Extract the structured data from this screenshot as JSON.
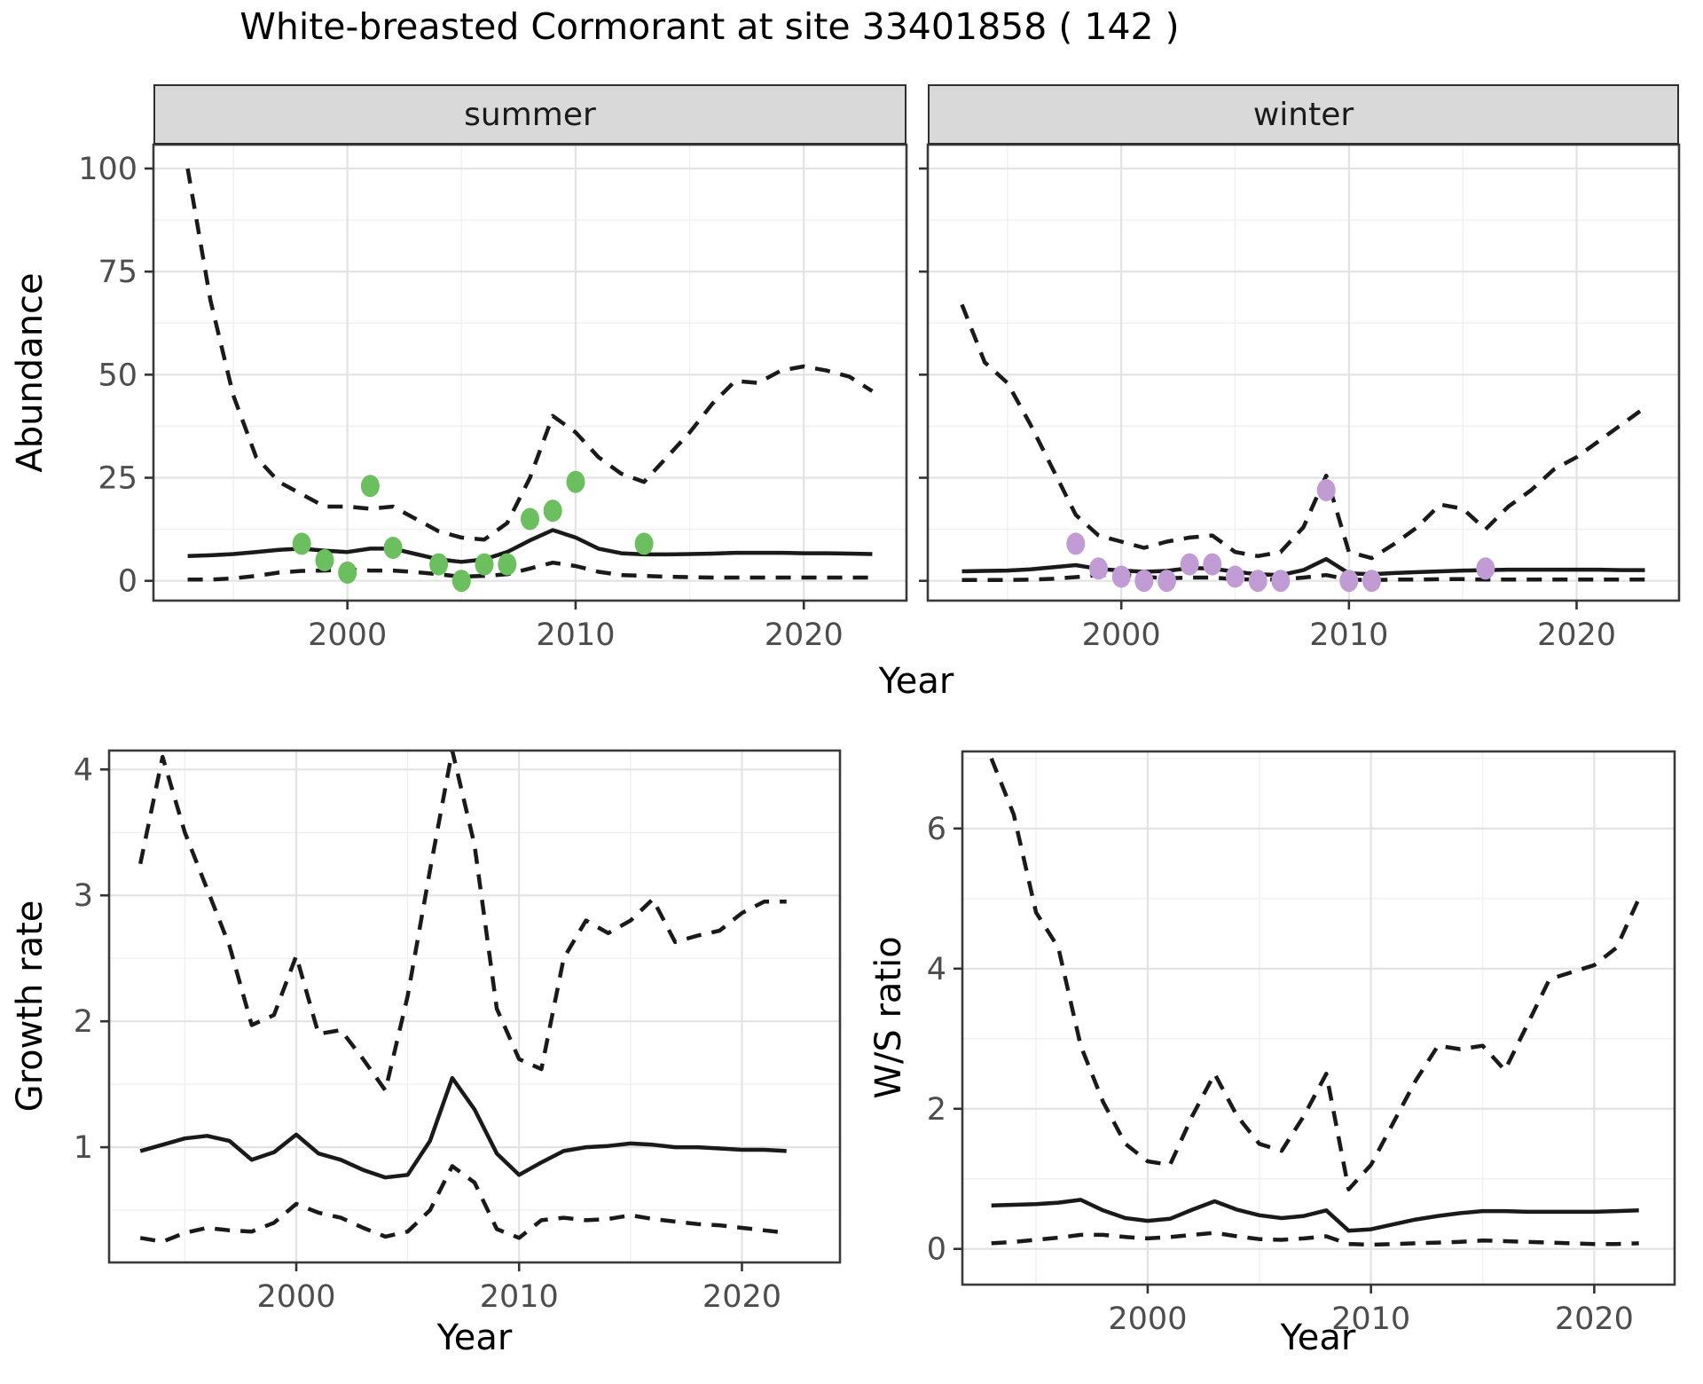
{
  "title": "White-breasted Cormorant at site 33401858 ( 142 )",
  "labels": {
    "y_top": "Abundance",
    "y_bottom_left": "Growth rate",
    "y_bottom_right": "W/S ratio",
    "x": "Year"
  },
  "facets": {
    "summer": "summer",
    "winter": "winter"
  },
  "colors": {
    "summer_points": "#6cbf5e",
    "winter_points": "#c19cd4",
    "line": "#1a1a1a",
    "tick_text": "#4d4d4d",
    "strip_bg": "#d9d9d9",
    "panel_border": "#3a3a3a",
    "grid_major": "#e3e3e3",
    "grid_minor": "#f0f0f0"
  },
  "chart_data": [
    {
      "id": "abundance-summer",
      "type": "line",
      "facet_label": "summer",
      "xlabel": "Year",
      "ylabel": "Abundance",
      "xlim": [
        1991.5,
        2024.5
      ],
      "ylim": [
        -4.8,
        105.8
      ],
      "xticks": [
        2000,
        2010,
        2020
      ],
      "yticks": [
        0,
        25,
        50,
        75,
        100
      ],
      "show_ytick_labels": true,
      "x": [
        1993,
        1994,
        1995,
        1996,
        1997,
        1998,
        1999,
        2000,
        2001,
        2002,
        2003,
        2004,
        2005,
        2006,
        2007,
        2008,
        2009,
        2010,
        2011,
        2012,
        2013,
        2014,
        2015,
        2016,
        2017,
        2018,
        2019,
        2020,
        2021,
        2022,
        2023
      ],
      "series": [
        {
          "name": "upper_95ci",
          "style": "dashed",
          "values": [
            100,
            68,
            45,
            30,
            24,
            21,
            18,
            18,
            17.5,
            18,
            15,
            12,
            10.5,
            10,
            14,
            25,
            40,
            36,
            30,
            26,
            24,
            30,
            36,
            43,
            48.5,
            48,
            51,
            52,
            51,
            49.5,
            46
          ]
        },
        {
          "name": "median",
          "style": "solid",
          "values": [
            6,
            6.2,
            6.5,
            7,
            7.5,
            7.8,
            7.3,
            7,
            7.8,
            7.8,
            6.5,
            5.2,
            4.6,
            5.2,
            7,
            9.8,
            12.3,
            10.5,
            7.8,
            6.7,
            6.4,
            6.4,
            6.5,
            6.6,
            6.8,
            6.8,
            6.8,
            6.7,
            6.7,
            6.6,
            6.5
          ]
        },
        {
          "name": "lower_95ci",
          "style": "dashed",
          "values": [
            0.3,
            0.3,
            0.6,
            1.2,
            2,
            2.4,
            2.5,
            2.8,
            2.5,
            2.5,
            2.1,
            1.6,
            1,
            1.2,
            1.6,
            3,
            4.4,
            3.6,
            2.2,
            1.4,
            1.2,
            1,
            0.9,
            0.8,
            0.8,
            0.8,
            0.8,
            0.8,
            0.8,
            0.8,
            0.8
          ]
        }
      ],
      "points": {
        "name": "observed-summer-counts",
        "color": "#6cbf5e",
        "data": [
          [
            1998,
            9
          ],
          [
            1999,
            5
          ],
          [
            2000,
            2
          ],
          [
            2001,
            23
          ],
          [
            2002,
            8
          ],
          [
            2004,
            4
          ],
          [
            2005,
            0
          ],
          [
            2006,
            4
          ],
          [
            2007,
            4
          ],
          [
            2008,
            15
          ],
          [
            2009,
            17
          ],
          [
            2010,
            24
          ],
          [
            2013,
            9
          ]
        ]
      }
    },
    {
      "id": "abundance-winter",
      "type": "line",
      "facet_label": "winter",
      "xlabel": "Year",
      "ylabel": "Abundance",
      "xlim": [
        1991.5,
        2024.5
      ],
      "ylim": [
        -4.8,
        105.8
      ],
      "xticks": [
        2000,
        2010,
        2020
      ],
      "yticks": [
        0,
        25,
        50,
        75,
        100
      ],
      "show_ytick_labels": false,
      "x": [
        1993,
        1994,
        1995,
        1996,
        1997,
        1998,
        1999,
        2000,
        2001,
        2002,
        2003,
        2004,
        2005,
        2006,
        2007,
        2008,
        2009,
        2010,
        2011,
        2012,
        2013,
        2014,
        2015,
        2016,
        2017,
        2018,
        2019,
        2020,
        2021,
        2022,
        2023
      ],
      "series": [
        {
          "name": "upper_95ci",
          "style": "dashed",
          "values": [
            67,
            53,
            48,
            38,
            27,
            16,
            11,
            9.5,
            8,
            9.5,
            10.5,
            11,
            7,
            6,
            7,
            13,
            25.5,
            7,
            5.5,
            9,
            13,
            18.5,
            17.5,
            12.5,
            18,
            22,
            27,
            30,
            34,
            38,
            42
          ]
        },
        {
          "name": "median",
          "style": "solid",
          "values": [
            2.3,
            2.4,
            2.5,
            2.8,
            3.3,
            3.8,
            2.9,
            2.5,
            2.2,
            2.4,
            3.1,
            3,
            2.2,
            1.6,
            1.4,
            2.6,
            5.3,
            1.8,
            1.6,
            1.9,
            2.1,
            2.3,
            2.5,
            2.6,
            2.7,
            2.7,
            2.7,
            2.7,
            2.7,
            2.6,
            2.6
          ]
        },
        {
          "name": "lower_95ci",
          "style": "dashed",
          "values": [
            0.2,
            0.2,
            0.2,
            0.3,
            0.5,
            0.9,
            1.4,
            1.5,
            1,
            0.6,
            0.8,
            0.8,
            0.4,
            0.3,
            0.3,
            0.8,
            1.4,
            0.3,
            0.2,
            0.3,
            0.3,
            0.4,
            0.4,
            0.3,
            0.3,
            0.3,
            0.3,
            0.3,
            0.3,
            0.3,
            0.3
          ]
        }
      ],
      "points": {
        "name": "observed-winter-counts",
        "color": "#c19cd4",
        "data": [
          [
            1998,
            9
          ],
          [
            1999,
            3
          ],
          [
            2000,
            1
          ],
          [
            2001,
            0
          ],
          [
            2002,
            0
          ],
          [
            2003,
            4
          ],
          [
            2004,
            4
          ],
          [
            2005,
            1
          ],
          [
            2006,
            0
          ],
          [
            2007,
            0
          ],
          [
            2009,
            22
          ],
          [
            2010,
            0
          ],
          [
            2011,
            0
          ],
          [
            2016,
            3
          ]
        ]
      }
    },
    {
      "id": "growth-rate",
      "type": "line",
      "facet_label": "",
      "xlabel": "Year",
      "ylabel": "Growth rate",
      "xlim": [
        1991.6,
        2024.4
      ],
      "ylim": [
        0.085,
        4.15
      ],
      "xticks": [
        2000,
        2010,
        2020
      ],
      "yticks": [
        1,
        2,
        3,
        4
      ],
      "show_ytick_labels": true,
      "x": [
        1993,
        1994,
        1995,
        1996,
        1997,
        1998,
        1999,
        2000,
        2001,
        2002,
        2003,
        2004,
        2005,
        2006,
        2007,
        2008,
        2009,
        2010,
        2011,
        2012,
        2013,
        2014,
        2015,
        2016,
        2017,
        2018,
        2019,
        2020,
        2021,
        2022
      ],
      "series": [
        {
          "name": "upper_95ci",
          "style": "dashed",
          "values": [
            3.25,
            4.1,
            3.5,
            3.05,
            2.6,
            1.97,
            2.05,
            2.52,
            1.9,
            1.93,
            1.7,
            1.45,
            2.2,
            3.2,
            4.15,
            3.4,
            2.1,
            1.7,
            1.62,
            2.5,
            2.8,
            2.7,
            2.8,
            2.97,
            2.63,
            2.68,
            2.72,
            2.86,
            2.95,
            2.95
          ]
        },
        {
          "name": "median",
          "style": "solid",
          "values": [
            0.97,
            1.02,
            1.07,
            1.09,
            1.05,
            0.9,
            0.96,
            1.1,
            0.95,
            0.9,
            0.82,
            0.76,
            0.78,
            1.05,
            1.55,
            1.3,
            0.95,
            0.78,
            0.88,
            0.97,
            1,
            1.01,
            1.03,
            1.02,
            1,
            1,
            0.99,
            0.98,
            0.98,
            0.97
          ]
        },
        {
          "name": "lower_95ci",
          "style": "dashed",
          "values": [
            0.28,
            0.25,
            0.32,
            0.36,
            0.34,
            0.33,
            0.4,
            0.55,
            0.48,
            0.44,
            0.36,
            0.29,
            0.33,
            0.5,
            0.85,
            0.72,
            0.35,
            0.28,
            0.42,
            0.44,
            0.42,
            0.43,
            0.46,
            0.43,
            0.41,
            0.39,
            0.38,
            0.36,
            0.34,
            0.32
          ]
        }
      ],
      "points": null
    },
    {
      "id": "ws-ratio",
      "type": "line",
      "facet_label": "",
      "xlabel": "Year",
      "ylabel": "W/S ratio",
      "xlim": [
        1991.7,
        2023.6
      ],
      "ylim": [
        -0.51,
        7.1
      ],
      "xticks": [
        2000,
        2010,
        2020
      ],
      "yticks": [
        0,
        2,
        4,
        6
      ],
      "show_ytick_labels": true,
      "x": [
        1993,
        1994,
        1995,
        1996,
        1997,
        1998,
        1999,
        2000,
        2001,
        2002,
        2003,
        2004,
        2005,
        2006,
        2007,
        2008,
        2009,
        2010,
        2011,
        2012,
        2013,
        2014,
        2015,
        2016,
        2017,
        2018,
        2019,
        2020,
        2021,
        2022
      ],
      "series": [
        {
          "name": "upper_95ci",
          "style": "dashed",
          "values": [
            7,
            6.2,
            4.8,
            4.3,
            2.9,
            2.1,
            1.5,
            1.25,
            1.2,
            1.9,
            2.5,
            1.9,
            1.5,
            1.4,
            1.9,
            2.5,
            0.85,
            1.2,
            1.8,
            2.4,
            2.9,
            2.85,
            2.9,
            2.55,
            3.2,
            3.85,
            3.95,
            4.05,
            4.3,
            5
          ]
        },
        {
          "name": "median",
          "style": "solid",
          "values": [
            0.62,
            0.63,
            0.64,
            0.66,
            0.7,
            0.55,
            0.44,
            0.4,
            0.43,
            0.56,
            0.68,
            0.56,
            0.48,
            0.44,
            0.47,
            0.55,
            0.26,
            0.28,
            0.35,
            0.42,
            0.47,
            0.51,
            0.54,
            0.54,
            0.53,
            0.53,
            0.53,
            0.53,
            0.54,
            0.55
          ]
        },
        {
          "name": "lower_95ci",
          "style": "dashed",
          "values": [
            0.08,
            0.1,
            0.13,
            0.16,
            0.2,
            0.2,
            0.17,
            0.15,
            0.17,
            0.2,
            0.23,
            0.18,
            0.14,
            0.13,
            0.15,
            0.18,
            0.07,
            0.06,
            0.07,
            0.08,
            0.09,
            0.1,
            0.12,
            0.11,
            0.1,
            0.09,
            0.08,
            0.07,
            0.07,
            0.08
          ]
        }
      ],
      "points": null
    }
  ]
}
